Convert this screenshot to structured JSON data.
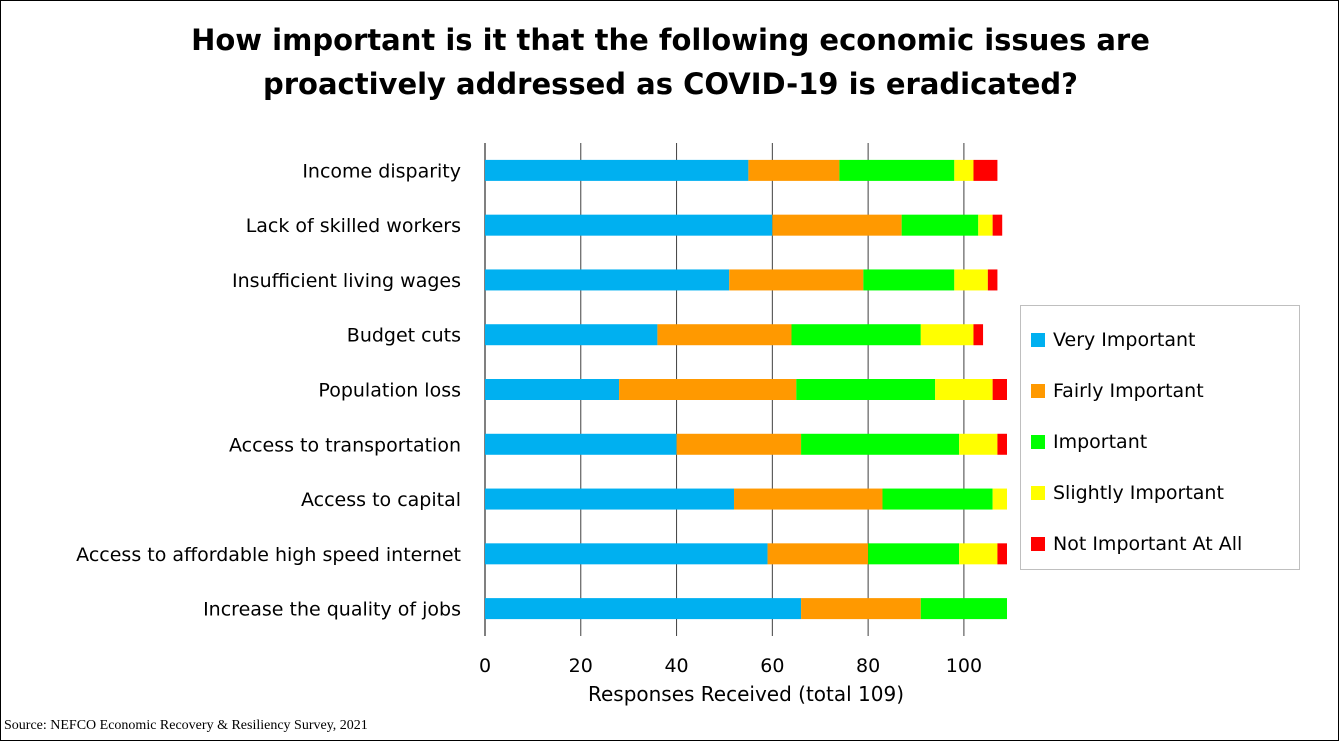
{
  "title_line1": "How important is it that the following economic issues are",
  "title_line2": "proactively addressed as COVID-19 is eradicated?",
  "source": "Source: NEFCO Economic Recovery & Resiliency Survey, 2021",
  "legend": [
    {
      "label": "Very Important",
      "color": "#00b0f0"
    },
    {
      "label": "Fairly Important",
      "color": "#ff9900"
    },
    {
      "label": "Important",
      "color": "#00ff00"
    },
    {
      "label": "Slightly Important",
      "color": "#ffff00"
    },
    {
      "label": "Not Important At All",
      "color": "#ff0000"
    }
  ],
  "chart_data": {
    "type": "bar",
    "orientation": "horizontal",
    "stacked": true,
    "title": "How important is it that the following economic issues are proactively addressed as COVID-19 is eradicated?",
    "xlabel": "Responses Received (total 109)",
    "ylabel": "",
    "xlim": [
      0,
      109
    ],
    "xticks": [
      0,
      20,
      40,
      60,
      80,
      100
    ],
    "grid": "vertical",
    "legend_position": "right",
    "categories": [
      "Income disparity",
      "Lack of skilled workers",
      "Insufficient living wages",
      "Budget cuts",
      "Population loss",
      "Access to transportation",
      "Access to capital",
      "Access to affordable high speed internet",
      "Increase the quality of jobs"
    ],
    "series": [
      {
        "name": "Very Important",
        "color": "#00b0f0",
        "values": [
          55,
          60,
          51,
          36,
          28,
          40,
          52,
          59,
          66
        ]
      },
      {
        "name": "Fairly Important",
        "color": "#ff9900",
        "values": [
          19,
          27,
          28,
          28,
          37,
          26,
          31,
          21,
          25
        ]
      },
      {
        "name": "Important",
        "color": "#00ff00",
        "values": [
          24,
          16,
          19,
          27,
          29,
          33,
          23,
          19,
          18
        ]
      },
      {
        "name": "Slightly Important",
        "color": "#ffff00",
        "values": [
          4,
          3,
          7,
          11,
          12,
          8,
          3,
          8,
          0
        ]
      },
      {
        "name": "Not Important At All",
        "color": "#ff0000",
        "values": [
          5,
          2,
          2,
          2,
          3,
          2,
          0,
          2,
          0
        ]
      }
    ]
  }
}
